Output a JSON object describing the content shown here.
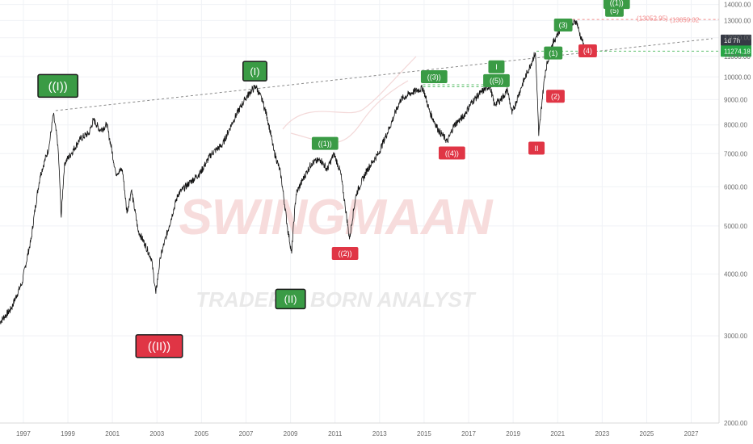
{
  "watermark": {
    "main": "SWINGMAAN",
    "sub": "TRADER & BORN ANALYST"
  },
  "chart_data": {
    "type": "line",
    "symbol_timeframe": "1d",
    "x_ticks": [
      "1997",
      "1999",
      "2001",
      "2003",
      "2005",
      "2007",
      "2009",
      "2011",
      "2013",
      "2015",
      "2017",
      "2019",
      "2021",
      "2023",
      "2025",
      "2027"
    ],
    "y_ticks": [
      "2000.00",
      "3000.00",
      "4000.00",
      "5000.00",
      "6000.00",
      "7000.00",
      "8000.00",
      "9000.00",
      "10000.00",
      "11000.00",
      "12000.00",
      "13000.00",
      "14000.00"
    ],
    "ylim": [
      2000,
      14300
    ],
    "xlim": [
      1996.0,
      2028.3
    ],
    "price_series": {
      "name": "",
      "x": [
        1996.0,
        1996.5,
        1997.0,
        1997.4,
        1997.8,
        1998.2,
        1998.4,
        1998.6,
        1998.75,
        1998.9,
        1999.2,
        1999.6,
        2000.0,
        2000.2,
        2000.5,
        2000.8,
        2001.2,
        2001.5,
        2001.7,
        2001.9,
        2002.2,
        2002.5,
        2002.8,
        2003.0,
        2003.2,
        2003.6,
        2004.0,
        2004.5,
        2005.0,
        2005.5,
        2006.0,
        2006.5,
        2007.0,
        2007.3,
        2007.5,
        2007.8,
        2008.0,
        2008.3,
        2008.6,
        2008.9,
        2009.1,
        2009.3,
        2009.6,
        2010.0,
        2010.4,
        2010.7,
        2011.0,
        2011.3,
        2011.5,
        2011.7,
        2012.0,
        2012.5,
        2013.0,
        2013.5,
        2014.0,
        2014.5,
        2015.0,
        2015.3,
        2015.7,
        2016.1,
        2016.4,
        2016.8,
        2017.2,
        2017.6,
        2018.0,
        2018.2,
        2018.5,
        2018.8,
        2019.0,
        2019.4,
        2019.8,
        2020.05,
        2020.2,
        2020.5,
        2020.8,
        2021.0,
        2021.3,
        2021.6,
        2021.9,
        2022.0,
        2022.15,
        2022.3
      ],
      "y": [
        3200,
        3400,
        3850,
        4700,
        6300,
        7200,
        8400,
        7300,
        5200,
        6700,
        7000,
        7500,
        7700,
        8200,
        7800,
        8000,
        6400,
        6500,
        5300,
        5900,
        4900,
        4600,
        4300,
        3650,
        4300,
        5000,
        5800,
        6100,
        6400,
        7000,
        7300,
        8200,
        9000,
        9400,
        9560,
        8900,
        8300,
        7100,
        6400,
        5000,
        4400,
        5800,
        6200,
        6700,
        6800,
        6500,
        7000,
        6400,
        5500,
        4700,
        5800,
        6500,
        7000,
        7900,
        9000,
        9300,
        9500,
        8500,
        7800,
        7400,
        8000,
        8300,
        8900,
        9300,
        9600,
        8800,
        9000,
        9400,
        8400,
        9500,
        10500,
        11200,
        7600,
        10300,
        11600,
        12100,
        12800,
        12600,
        13000,
        12400,
        11800,
        11300
      ]
    },
    "trendlines": [
      {
        "style": "dashed-gray",
        "x": [
          1998.5,
          2028.0
        ],
        "y": [
          8550,
          11950
        ]
      },
      {
        "style": "dashed-red",
        "x": [
          2021.5,
          2028.3
        ],
        "y": [
          13059,
          13059
        ]
      },
      {
        "style": "dashed-green",
        "x": [
          2020.1,
          2028.3
        ],
        "y": [
          11274.18,
          11274.18
        ]
      },
      {
        "style": "dashed-green",
        "x": [
          2015.0,
          2018.5
        ],
        "y": [
          9550,
          9550
        ]
      },
      {
        "style": "dashed-green",
        "x": [
          2015.0,
          2018.5
        ],
        "y": [
          9640,
          9640
        ]
      }
    ],
    "wave_labels": [
      {
        "text": "((I))",
        "x": 1998.6,
        "y": 9590,
        "color": "green",
        "size": "big"
      },
      {
        "text": "((II))",
        "x": 2003.15,
        "y": 2860,
        "color": "red",
        "size": "big"
      },
      {
        "text": "(I)",
        "x": 2007.45,
        "y": 10270,
        "color": "green",
        "size": "mid"
      },
      {
        "text": "(II)",
        "x": 2009.05,
        "y": 3560,
        "color": "green",
        "size": "mid"
      },
      {
        "text": "((1))",
        "x": 2010.6,
        "y": 7340,
        "color": "green",
        "size": "small"
      },
      {
        "text": "((2))",
        "x": 2011.5,
        "y": 4400,
        "color": "red",
        "size": "small"
      },
      {
        "text": "((3))",
        "x": 2015.5,
        "y": 10010,
        "color": "green",
        "size": "small"
      },
      {
        "text": "((4))",
        "x": 2016.3,
        "y": 7020,
        "color": "red",
        "size": "small"
      },
      {
        "text": "((5))",
        "x": 2018.3,
        "y": 9830,
        "color": "green",
        "size": "small"
      },
      {
        "text": "I",
        "x": 2018.3,
        "y": 10480,
        "color": "green",
        "size": "small"
      },
      {
        "text": "II",
        "x": 2020.1,
        "y": 7180,
        "color": "red",
        "size": "small"
      },
      {
        "text": "(1)",
        "x": 2020.85,
        "y": 11180,
        "color": "green",
        "size": "small"
      },
      {
        "text": "(2)",
        "x": 2020.95,
        "y": 9140,
        "color": "red",
        "size": "small"
      },
      {
        "text": "(3)",
        "x": 2021.3,
        "y": 12730,
        "color": "green",
        "size": "small"
      },
      {
        "text": "(4)",
        "x": 2022.4,
        "y": 11290,
        "color": "red",
        "size": "small"
      },
      {
        "text": "(5)",
        "x": 2023.6,
        "y": 13630,
        "color": "green",
        "size": "small"
      },
      {
        "text": "((1))",
        "x": 2023.7,
        "y": 14130,
        "color": "green",
        "size": "small"
      }
    ],
    "annotations": [
      {
        "text": "(13052.95)",
        "x": 2025.3,
        "y": 13150,
        "color": "red"
      },
      {
        "text": "(13059.02",
        "x": 2026.75,
        "y": 13050,
        "color": "red"
      }
    ],
    "price_tags": [
      {
        "text": "1d 7h",
        "y": 11860,
        "bg": "#363a45"
      },
      {
        "text": "11274.18",
        "y": 11274.18,
        "bg": "#27a745"
      }
    ]
  },
  "colors": {
    "green_label": "#3a9b45",
    "red_label": "#e03545",
    "grid": "#f0f2f6",
    "trend_gray": "#8a8a8a",
    "red_dash": "#f28b8b",
    "green_dash": "#5bbf6a",
    "price_line": "#131313",
    "watermark": "#f7dcdc",
    "watermark_sub": "#e8e8e8"
  }
}
